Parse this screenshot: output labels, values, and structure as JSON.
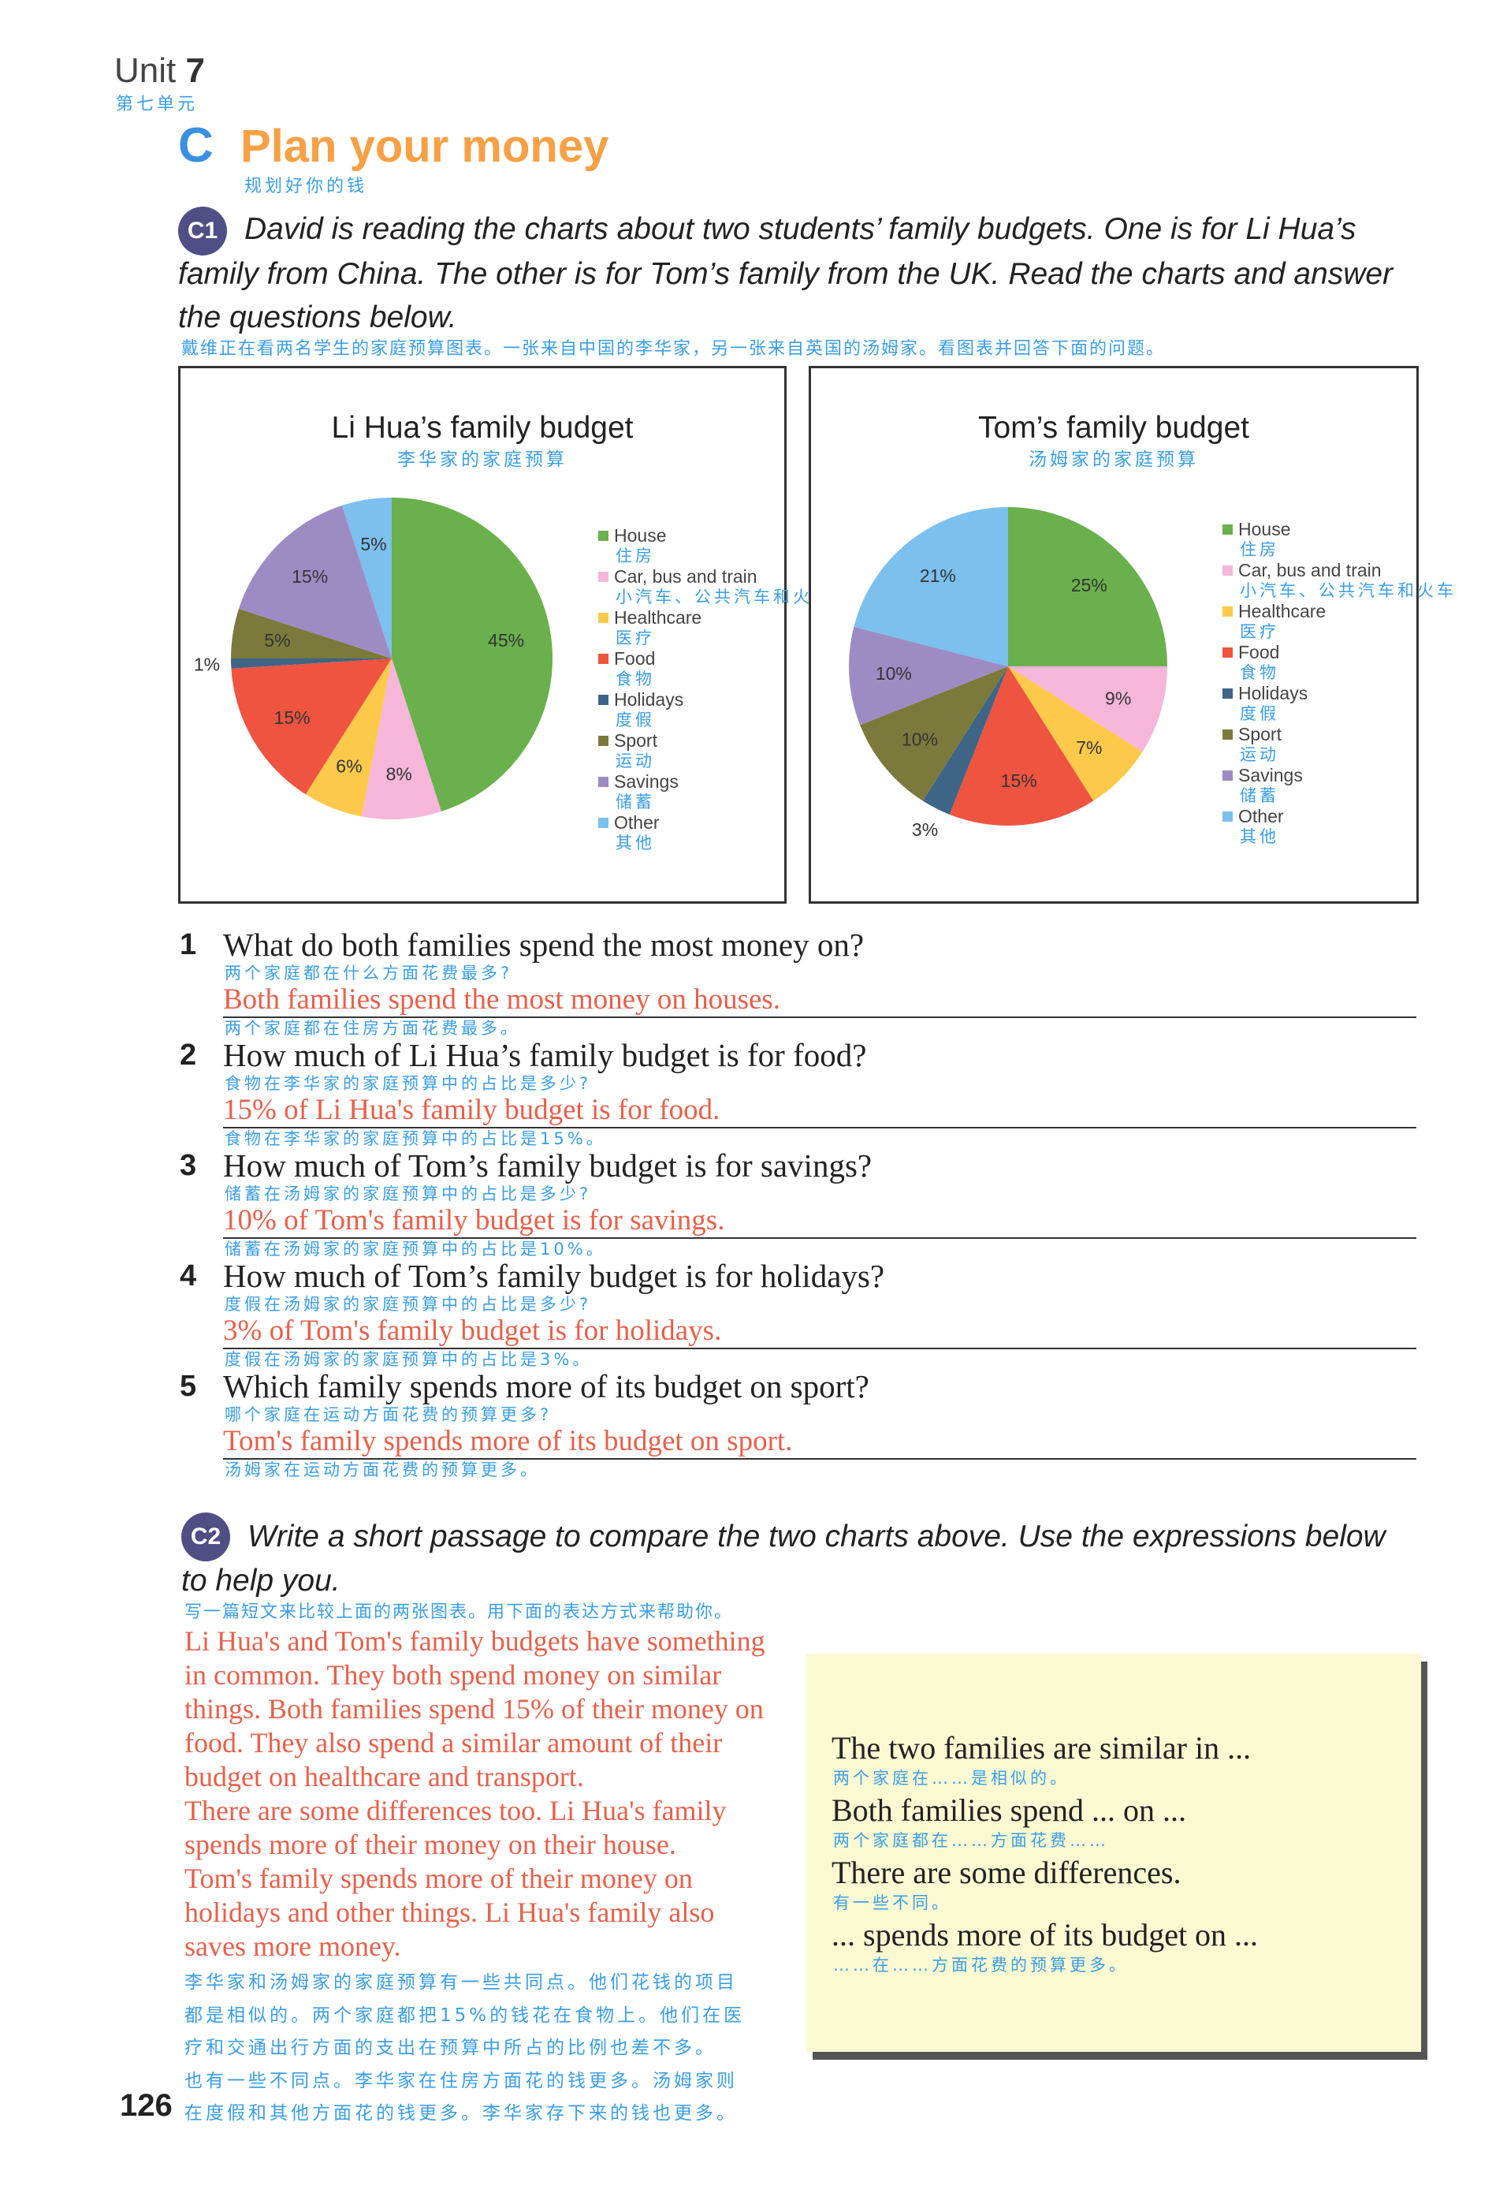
{
  "header": {
    "unit_label": "Unit",
    "unit_number": "7",
    "unit_cn": "第七单元",
    "section_letter": "C",
    "section_title": "Plan your money",
    "section_cn": "规划好你的钱"
  },
  "c1": {
    "badge": "C1",
    "instruction_lines": [
      "David is reading the charts about two students’ family budgets. One is for Li Hua’s",
      "family from China. The other is for Tom’s family from the UK. Read the charts and answer",
      "the questions below."
    ],
    "instruction_cn": "戴维正在看两名学生的家庭预算图表。一张来自中国的李华家，另一张来自英国的汤姆家。看图表并回答下面的问题。"
  },
  "legend": [
    {
      "en": "House",
      "cn": "住房"
    },
    {
      "en": "Car, bus and train",
      "cn": "小汽车、公共汽车和火车"
    },
    {
      "en": "Healthcare",
      "cn": "医疗"
    },
    {
      "en": "Food",
      "cn": "食物"
    },
    {
      "en": "Holidays",
      "cn": "度假"
    },
    {
      "en": "Sport",
      "cn": "运动"
    },
    {
      "en": "Savings",
      "cn": "储蓄"
    },
    {
      "en": "Other",
      "cn": "其他"
    }
  ],
  "colors": [
    "#6ab04c",
    "#f5b6da",
    "#fcc94a",
    "#ef5440",
    "#3e6486",
    "#7b7a3c",
    "#9d8cc4",
    "#7cc0ee"
  ],
  "chart_data": [
    {
      "type": "pie",
      "title": "Li Hua’s family budget",
      "title_cn": "李华家的家庭预算",
      "categories": [
        "House",
        "Car, bus and train",
        "Healthcare",
        "Food",
        "Holidays",
        "Sport",
        "Savings",
        "Other"
      ],
      "values": [
        45,
        8,
        6,
        15,
        1,
        5,
        15,
        5
      ],
      "labels": [
        "45%",
        "8%",
        "6%",
        "15%",
        "1%",
        "5%",
        "15%",
        "5%"
      ],
      "unit": "%",
      "legend_position": "right"
    },
    {
      "type": "pie",
      "title": "Tom’s family budget",
      "title_cn": "汤姆家的家庭预算",
      "categories": [
        "House",
        "Car, bus and train",
        "Healthcare",
        "Food",
        "Holidays",
        "Sport",
        "Savings",
        "Other"
      ],
      "values": [
        25,
        9,
        7,
        15,
        3,
        10,
        10,
        21
      ],
      "labels": [
        "25%",
        "9%",
        "7%",
        "15%",
        "3%",
        "10%",
        "10%",
        "21%"
      ],
      "unit": "%",
      "legend_position": "right"
    }
  ],
  "questions": [
    {
      "num": "1",
      "q": "What do both families spend the most money on?",
      "q_cn": "两个家庭都在什么方面花费最多?",
      "a": "Both families spend the most money on houses.",
      "a_cn": "两个家庭都在住房方面花费最多。"
    },
    {
      "num": "2",
      "q": "How much of Li Hua’s family budget is for food?",
      "q_cn": "食物在李华家的家庭预算中的占比是多少?",
      "a": "15% of Li Hua's family budget is for food.",
      "a_cn": "食物在李华家的家庭预算中的占比是15%。"
    },
    {
      "num": "3",
      "q": "How much of Tom’s family budget is for savings?",
      "q_cn": "储蓄在汤姆家的家庭预算中的占比是多少?",
      "a": "10% of Tom's family budget is for savings.",
      "a_cn": "储蓄在汤姆家的家庭预算中的占比是10%。"
    },
    {
      "num": "4",
      "q": "How much of Tom’s family budget is for holidays?",
      "q_cn": "度假在汤姆家的家庭预算中的占比是多少?",
      "a": "3% of Tom's family budget is for holidays.",
      "a_cn": "度假在汤姆家的家庭预算中的占比是3%。"
    },
    {
      "num": "5",
      "q": "Which family spends more of its budget on sport?",
      "q_cn": "哪个家庭在运动方面花费的预算更多?",
      "a": "Tom's family spends more of its budget on sport.",
      "a_cn": "汤姆家在运动方面花费的预算更多。"
    }
  ],
  "c2": {
    "badge": "C2",
    "instruction_lines": [
      "Write a short passage to compare the two charts above. Use the expressions below",
      "to help you."
    ],
    "instruction_cn": "写一篇短文来比较上面的两张图表。用下面的表达方式来帮助你。",
    "passage_lines": [
      "Li Hua's and Tom's family budgets have something",
      "in common. They both spend money on similar",
      "things. Both families spend 15% of their money on",
      "food. They also spend a similar amount of their",
      "budget on healthcare and transport.",
      "There are some differences too. Li Hua's family",
      "spends more of their money on their house.",
      "Tom's family spends more of their money on",
      "holidays and other things. Li Hua's family also",
      "saves more money."
    ],
    "passage_cn_lines": [
      "李华家和汤姆家的家庭预算有一些共同点。他们花钱的项目",
      "都是相似的。两个家庭都把15%的钱花在食物上。他们在医",
      "疗和交通出行方面的支出在预算中所占的比例也差不多。",
      "也有一些不同点。李华家在住房方面花的钱更多。汤姆家则",
      "在度假和其他方面花的钱更多。李华家存下来的钱也更多。"
    ],
    "expressions": [
      {
        "en": "The two families are similar in ...",
        "cn": "两个家庭在……是相似的。"
      },
      {
        "en": "Both families spend ... on ...",
        "cn": "两个家庭都在……方面花费……"
      },
      {
        "en": "There are some differences.",
        "cn": "有一些不同。"
      },
      {
        "en": "... spends more of its budget on ...",
        "cn": "……在……方面花费的预算更多。"
      }
    ]
  },
  "page_number": "126"
}
